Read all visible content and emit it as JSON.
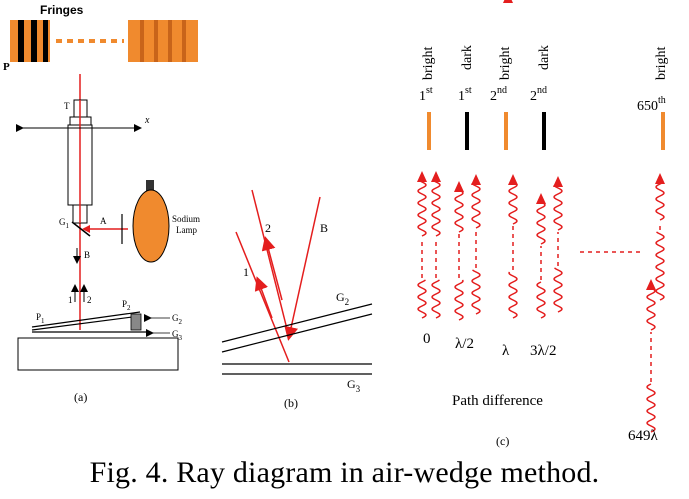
{
  "colors": {
    "orange": "#f08a2e",
    "red": "#e41e1e",
    "black": "#000000",
    "stripe": "#b85a10"
  },
  "panel_a": {
    "fringes_label": "Fringes",
    "p_label": "P",
    "t_label": "T",
    "x_label": "x",
    "g1_label": "G",
    "g1_sub": "1",
    "a_label": "A",
    "b_label": "B",
    "ray1_label": "1",
    "ray2_label": "2",
    "lamp_line1": "Sodium",
    "lamp_line2": "Lamp",
    "p1_label": "P",
    "p1_sub": "1",
    "p2_label": "P",
    "p2_sub": "2",
    "g2_label": "G",
    "g2_sub": "2",
    "g3_label": "G",
    "g3_sub": "3",
    "caption": "(a)"
  },
  "panel_b": {
    "ray1_label": "1",
    "ray2_label": "2",
    "b_label": "B",
    "g2_label": "G",
    "g2_sub": "2",
    "g3_label": "G",
    "g3_sub": "3",
    "caption": "(b)"
  },
  "panel_c": {
    "fringes": [
      {
        "type": "bright",
        "num": "1",
        "ord": "st"
      },
      {
        "type": "dark",
        "num": "1",
        "ord": "st"
      },
      {
        "type": "bright",
        "num": "2",
        "ord": "nd"
      },
      {
        "type": "dark",
        "num": "2",
        "ord": "nd"
      },
      {
        "type": "bright",
        "num": "650",
        "ord": "th"
      }
    ],
    "path_values": [
      "0",
      "λ/2",
      "λ",
      "3λ/2",
      "649λ"
    ],
    "path_label": "Path difference",
    "caption": "(c)"
  },
  "figure_caption": "Fig. 4. Ray diagram in air-wedge method."
}
